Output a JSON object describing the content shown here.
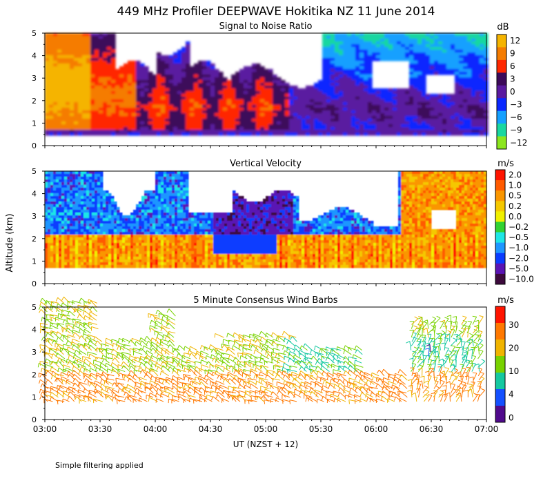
{
  "title": "449 MHz Profiler DEEPWAVE Hokitika NZ 11 June 2014",
  "ylabel": "Altitude (km)",
  "xlabel": "UT  (NZST + 12)",
  "footnote": "Simple filtering applied",
  "x_ticks": [
    "03:00",
    "03:30",
    "04:00",
    "04:30",
    "05:00",
    "05:30",
    "06:00",
    "06:30",
    "07:00"
  ],
  "chart_data": [
    {
      "type": "heatmap",
      "title": "Signal to Noise Ratio",
      "xlim": [
        "03:00",
        "07:00"
      ],
      "ylim": [
        0,
        5
      ],
      "y_ticks": [
        "0",
        "1",
        "2",
        "3",
        "4",
        "5"
      ],
      "colorbar": {
        "unit": "dB",
        "labels": [
          "12",
          "9",
          "6",
          "3",
          "0",
          "−3",
          "−6",
          "−9",
          "−12"
        ],
        "colors": [
          "#f5b400",
          "#f57c00",
          "#ff2800",
          "#3c0a5a",
          "#5a1aa0",
          "#0a28ff",
          "#14a0ff",
          "#19d7a0",
          "#8ce61e"
        ]
      }
    },
    {
      "type": "heatmap",
      "title": "Vertical Velocity",
      "xlim": [
        "03:00",
        "07:00"
      ],
      "ylim": [
        0,
        5
      ],
      "y_ticks": [
        "0",
        "1",
        "2",
        "3",
        "4",
        "5"
      ],
      "colorbar": {
        "unit": "m/s",
        "labels": [
          "2.0",
          "1.0",
          "0.5",
          "0.2",
          "0.0",
          "−0.2",
          "−0.5",
          "−1.0",
          "−2.0",
          "−5.0",
          "−10.0"
        ],
        "colors": [
          "#ff1400",
          "#ff5a00",
          "#fa9600",
          "#f5c800",
          "#f0f000",
          "#32d232",
          "#1ee6e6",
          "#1e96ff",
          "#0a3cff",
          "#5a14b4",
          "#3c0a3c"
        ]
      }
    },
    {
      "type": "scatter",
      "title": "5 Minute Consensus Wind Barbs",
      "xlim": [
        "03:00",
        "07:00"
      ],
      "ylim": [
        0,
        5
      ],
      "y_ticks": [
        "0",
        "1",
        "2",
        "3",
        "4",
        "5"
      ],
      "colorbar": {
        "unit": "m/s",
        "labels": [
          "30",
          "20",
          "10",
          "4",
          "0"
        ],
        "colors": [
          "#ff1400",
          "#ff7800",
          "#f0b400",
          "#78d200",
          "#14c8a0",
          "#1450ff",
          "#500a8c"
        ]
      }
    }
  ]
}
